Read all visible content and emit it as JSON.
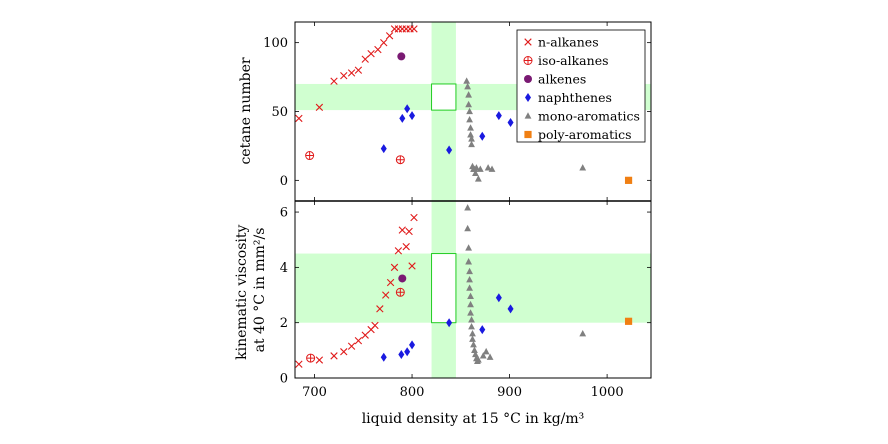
{
  "chart_data": [
    {
      "type": "scatter",
      "panel": "top",
      "xlabel": "liquid density at 15 °C in kg/m³",
      "ylabel": "cetane number",
      "xlim": [
        680,
        1045
      ],
      "ylim": [
        -15,
        115
      ],
      "xticks": [
        "700",
        "800",
        "900",
        "1000"
      ],
      "yticks": [
        "0",
        "50",
        "100"
      ],
      "grid": false,
      "legend_position": "top-right",
      "target_band_x": [
        820,
        845
      ],
      "target_band_y": [
        51,
        70
      ],
      "series": [
        {
          "name": "n-alkanes",
          "marker": "cross",
          "color": "#e01b1b",
          "x": [
            684,
            705,
            720,
            730,
            738,
            745,
            752,
            758,
            765,
            771,
            777,
            782,
            786,
            790,
            794,
            798,
            802
          ],
          "y": [
            45,
            53,
            72,
            76,
            78,
            80,
            88,
            92,
            95,
            100,
            105,
            110,
            110,
            110,
            110,
            110,
            110
          ]
        },
        {
          "name": "iso-alkanes",
          "marker": "circle-plus",
          "color": "#e01b1b",
          "x": [
            695,
            788
          ],
          "y": [
            18,
            15
          ]
        },
        {
          "name": "alkenes",
          "marker": "circle",
          "color": "#7a1a73",
          "x": [
            789
          ],
          "y": [
            90
          ]
        },
        {
          "name": "naphthenes",
          "marker": "diamond",
          "color": "#1a1ae0",
          "x": [
            771,
            790,
            795,
            800,
            838,
            872,
            889,
            901
          ],
          "y": [
            23,
            45,
            52,
            47,
            22,
            32,
            47,
            42
          ]
        },
        {
          "name": "mono-aromatics",
          "marker": "triangle",
          "color": "#808080",
          "x": [
            856,
            857,
            858,
            858,
            859,
            859,
            860,
            860,
            861,
            861,
            862,
            863,
            864,
            865,
            866,
            868,
            870,
            878,
            882,
            975
          ],
          "y": [
            72,
            68,
            62,
            55,
            50,
            44,
            38,
            33,
            30,
            26,
            10,
            8,
            8,
            5,
            9,
            1,
            8,
            9,
            8,
            9
          ]
        },
        {
          "name": "poly-aromatics",
          "marker": "square",
          "color": "#f07f13",
          "x": [
            1022
          ],
          "y": [
            0
          ]
        }
      ]
    },
    {
      "type": "scatter",
      "panel": "bottom",
      "xlabel": "liquid density at 15 °C in kg/m³",
      "ylabel": "kinematic viscosity at 40 °C in mm²/s",
      "ylabel_lines": [
        "kinematic viscosity",
        "at 40 °C in mm²/s"
      ],
      "xlim": [
        680,
        1045
      ],
      "ylim": [
        0,
        6.4
      ],
      "xticks": [
        "700",
        "800",
        "900",
        "1000"
      ],
      "yticks": [
        "0",
        "2",
        "4",
        "6"
      ],
      "grid": false,
      "target_band_x": [
        820,
        845
      ],
      "target_band_y": [
        2.0,
        4.5
      ],
      "series": [
        {
          "name": "n-alkanes",
          "marker": "cross",
          "color": "#e01b1b",
          "x": [
            684,
            705,
            720,
            730,
            738,
            745,
            752,
            758,
            762,
            767,
            773,
            778,
            782,
            786,
            790,
            794,
            797,
            800,
            802
          ],
          "y": [
            0.5,
            0.65,
            0.8,
            0.95,
            1.15,
            1.35,
            1.55,
            1.75,
            1.9,
            2.5,
            3.0,
            3.45,
            4.0,
            4.6,
            5.35,
            4.75,
            5.3,
            4.05,
            5.8
          ]
        },
        {
          "name": "iso-alkanes",
          "marker": "circle-plus",
          "color": "#e01b1b",
          "x": [
            696,
            788
          ],
          "y": [
            0.72,
            3.1
          ]
        },
        {
          "name": "alkenes",
          "marker": "circle",
          "color": "#7a1a73",
          "x": [
            790
          ],
          "y": [
            3.6
          ]
        },
        {
          "name": "naphthenes",
          "marker": "diamond",
          "color": "#1a1ae0",
          "x": [
            771,
            789,
            795,
            800,
            838,
            872,
            889,
            901
          ],
          "y": [
            0.75,
            0.85,
            0.95,
            1.2,
            2.0,
            1.75,
            2.9,
            2.5
          ]
        },
        {
          "name": "mono-aromatics",
          "marker": "triangle",
          "color": "#808080",
          "x": [
            857,
            857,
            858,
            858,
            859,
            859,
            859,
            860,
            860,
            860,
            861,
            861,
            862,
            862,
            863,
            864,
            865,
            866,
            867,
            868,
            873,
            876,
            880,
            975
          ],
          "y": [
            6.15,
            5.4,
            4.7,
            4.2,
            3.85,
            3.55,
            3.25,
            2.95,
            2.65,
            2.35,
            2.1,
            1.85,
            1.6,
            1.4,
            1.2,
            1.0,
            0.85,
            0.7,
            0.6,
            0.65,
            0.8,
            0.95,
            0.75,
            1.6
          ]
        },
        {
          "name": "poly-aromatics",
          "marker": "square",
          "color": "#f07f13",
          "x": [
            1022
          ],
          "y": [
            2.05
          ]
        }
      ]
    }
  ]
}
